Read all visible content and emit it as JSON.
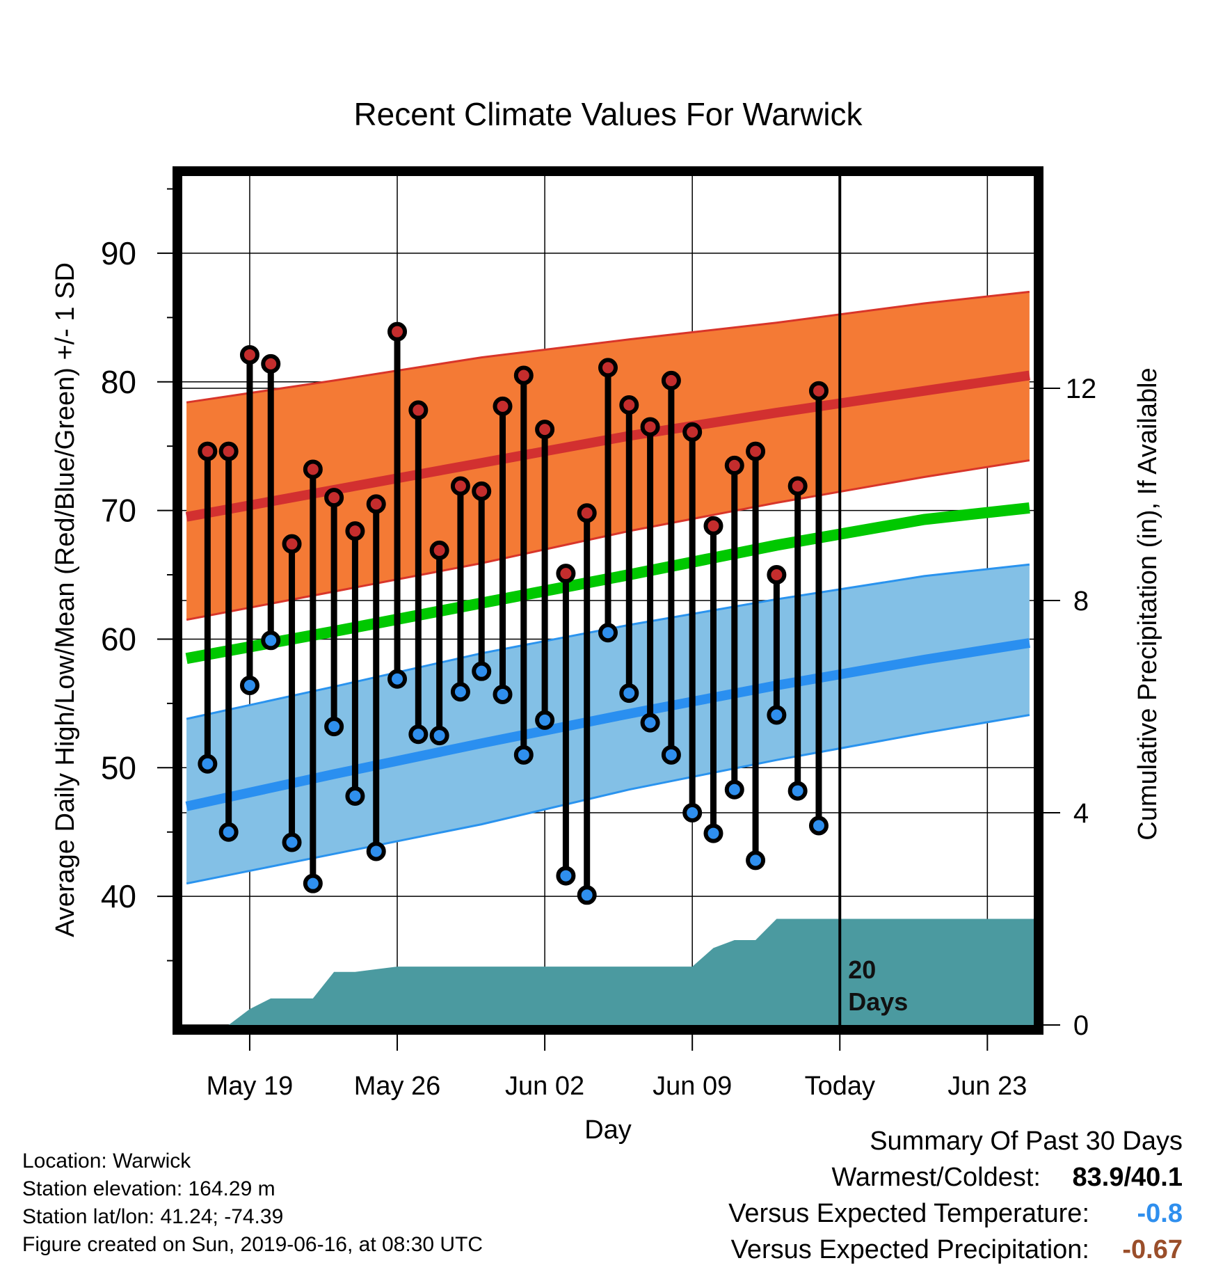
{
  "chart_data": {
    "type": "line",
    "title": "Recent Climate Values For Warwick",
    "xlabel": "Day",
    "ylabel": "Average Daily High/Low/Mean (Red/Blue/Green) +/- 1 SD",
    "y2label": "Cumulative Precipitation (in), If Available",
    "ylim": [
      30,
      96
    ],
    "y2lim": [
      0,
      16
    ],
    "xlim": [
      -3.2,
      37.2
    ],
    "y_ticks": [
      40,
      50,
      60,
      70,
      80,
      90
    ],
    "y2_ticks": [
      0,
      4,
      8,
      12
    ],
    "x_ticks": [
      {
        "day": 0,
        "label": "May 19"
      },
      {
        "day": 7,
        "label": "May 26"
      },
      {
        "day": 14,
        "label": "Jun 02"
      },
      {
        "day": 21,
        "label": "Jun 09"
      },
      {
        "day": 28,
        "label": "Today"
      },
      {
        "day": 35,
        "label": "Jun 23"
      }
    ],
    "today_day": 28,
    "today_annotation": [
      "20",
      "Days"
    ],
    "normals": {
      "days": [
        -3,
        4,
        11,
        18,
        25,
        32,
        37
      ],
      "high_mean": [
        69.5,
        71.6,
        73.7,
        75.8,
        77.6,
        79.3,
        80.5
      ],
      "high_upper": [
        78.4,
        80.1,
        81.9,
        83.3,
        84.6,
        86.1,
        87
      ],
      "high_lower": [
        61.5,
        63.7,
        65.9,
        68.4,
        70.6,
        72.6,
        73.9
      ],
      "low_mean": [
        47,
        49.5,
        51.9,
        54.2,
        56.4,
        58.4,
        59.7
      ],
      "low_upper": [
        53.8,
        56.3,
        58.9,
        61.1,
        63.1,
        64.9,
        65.8
      ],
      "low_lower": [
        41,
        43.3,
        45.6,
        48.3,
        50.6,
        52.7,
        54.1
      ],
      "mean": [
        58.5,
        60.6,
        62.8,
        65,
        67.3,
        69.3,
        70.2
      ]
    },
    "series": [
      {
        "name": "High",
        "days": [
          -2,
          -1,
          0,
          1,
          2,
          3,
          4,
          5,
          6,
          7,
          8,
          9,
          10,
          11,
          12,
          13,
          14,
          15,
          16,
          17,
          18,
          19,
          20,
          21,
          22,
          23,
          24,
          25,
          26,
          27
        ],
        "values": [
          74.6,
          74.6,
          82.1,
          81.4,
          67.4,
          73.2,
          71.0,
          68.4,
          70.5,
          83.9,
          77.8,
          66.9,
          71.9,
          71.5,
          78.1,
          80.5,
          76.3,
          65.1,
          69.8,
          81.1,
          78.2,
          76.5,
          80.1,
          76.1,
          68.8,
          73.5,
          74.6,
          65.0,
          71.9,
          79.3
        ]
      },
      {
        "name": "Low",
        "days": [
          -2,
          -1,
          0,
          1,
          2,
          3,
          4,
          5,
          6,
          7,
          8,
          9,
          10,
          11,
          12,
          13,
          14,
          15,
          16,
          17,
          18,
          19,
          20,
          21,
          22,
          23,
          24,
          25,
          26,
          27
        ],
        "values": [
          50.3,
          45.0,
          56.4,
          59.9,
          44.2,
          41.0,
          53.2,
          47.8,
          43.5,
          56.9,
          52.6,
          52.5,
          55.9,
          57.5,
          55.7,
          51.0,
          53.7,
          41.6,
          40.1,
          60.5,
          55.8,
          53.5,
          51.0,
          46.5,
          44.9,
          48.3,
          42.8,
          54.1,
          48.2,
          45.5
        ]
      }
    ],
    "precipitation": {
      "days": [
        -2,
        -1,
        0,
        1,
        2,
        3,
        4,
        5,
        6,
        7,
        8,
        9,
        10,
        11,
        12,
        13,
        14,
        15,
        16,
        17,
        18,
        19,
        20,
        21,
        22,
        23,
        24,
        25,
        26,
        27,
        28,
        29,
        30,
        31,
        32,
        33,
        34,
        35,
        36,
        37
      ],
      "values": [
        0,
        0,
        0.3,
        0.5,
        0.5,
        0.5,
        1.0,
        1.0,
        1.05,
        1.1,
        1.1,
        1.1,
        1.1,
        1.1,
        1.1,
        1.1,
        1.1,
        1.1,
        1.1,
        1.1,
        1.1,
        1.1,
        1.1,
        1.1,
        1.45,
        1.6,
        1.6,
        2.0,
        2.0,
        2.0,
        2.0,
        2.0,
        2.0,
        2.0,
        2.0,
        2.0,
        2.0,
        2.0,
        2.0,
        2.0
      ]
    },
    "colors": {
      "high_band": "#f47a35",
      "high_band_edge": "#d8352a",
      "high_mean": "#d23030",
      "low_band": "#83c0e6",
      "low_band_edge": "#2a93ee",
      "low_mean": "#2a8ff0",
      "mean": "#00c800",
      "precip": "#4b9aa0",
      "high_marker": "#c42d2d",
      "low_marker": "#2f8fee",
      "temp_anomaly": "#2f8fee",
      "precip_anomaly": "#9a4e2a"
    }
  },
  "location_info": [
    "Location: Warwick",
    "Station elevation: 164.29 m",
    "Station lat/lon: 41.24; -74.39",
    "Figure created on Sun, 2019-06-16, at 08:30 UTC"
  ],
  "summary": {
    "title": "Summary Of Past 30 Days",
    "warmest_coldest_label": "Warmest/Coldest:",
    "warmest": "83.9",
    "separator": "/",
    "coldest": "40.1",
    "temp_label": "Versus Expected Temperature:",
    "temp_value": "-0.8",
    "precip_label": "Versus Expected Precipitation:",
    "precip_value": "-0.67"
  }
}
